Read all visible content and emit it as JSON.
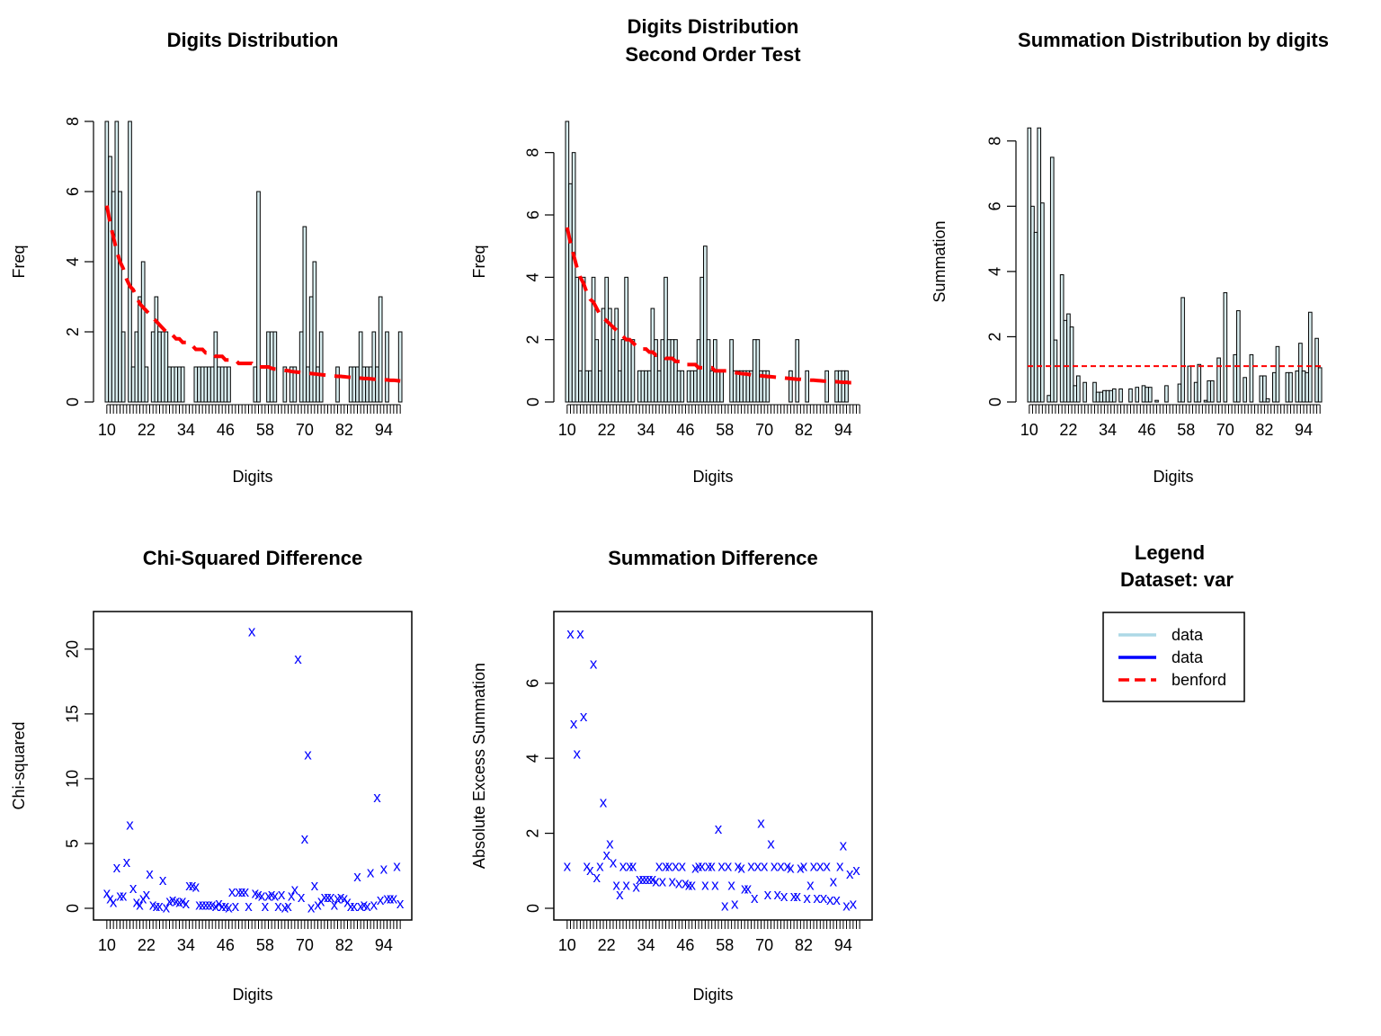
{
  "colors": {
    "bar_fill": "#d9eef0",
    "bar_stroke": "#000000",
    "benford": "#ff0000",
    "points": "#0000ff",
    "data_light": "#add8e6",
    "data_dark": "#0000ff"
  },
  "chart_data": [
    {
      "type": "bar",
      "title": [
        "Digits Distribution"
      ],
      "xlabel": "Digits",
      "ylabel": "Freq",
      "x_range": [
        10,
        99
      ],
      "ylim": [
        0,
        8
      ],
      "yticks": [
        0,
        2,
        4,
        6,
        8
      ],
      "xtick_labels": [
        "10",
        "22",
        "34",
        "46",
        "58",
        "70",
        "82",
        "94"
      ],
      "overlay": {
        "name": "benford",
        "style": "dashed",
        "values": [
          5.6,
          5.1,
          4.7,
          4.3,
          4.0,
          3.8,
          3.5,
          3.3,
          3.2,
          3.0,
          2.8,
          2.7,
          2.6,
          2.5,
          2.4,
          2.3,
          2.2,
          2.1,
          2.0,
          2.0,
          1.9,
          1.8,
          1.8,
          1.7,
          1.7,
          1.6,
          1.6,
          1.5,
          1.5,
          1.5,
          1.4,
          1.4,
          1.4,
          1.3,
          1.3,
          1.3,
          1.2,
          1.2,
          1.2,
          1.2,
          1.1,
          1.1,
          1.1,
          1.1,
          1.1,
          1.0,
          1.0,
          1.0,
          1.0,
          1.0,
          0.96,
          0.94,
          0.93,
          0.91,
          0.9,
          0.89,
          0.87,
          0.86,
          0.85,
          0.84,
          0.83,
          0.82,
          0.81,
          0.8,
          0.79,
          0.78,
          0.77,
          0.76,
          0.75,
          0.74,
          0.73,
          0.73,
          0.72,
          0.71,
          0.7,
          0.7,
          0.69,
          0.68,
          0.67,
          0.67,
          0.66,
          0.65,
          0.65,
          0.64,
          0.63,
          0.63,
          0.62,
          0.62,
          0.61,
          0.6
        ]
      },
      "values": [
        8,
        7,
        6,
        8,
        6,
        2,
        0,
        8,
        1,
        2,
        3,
        4,
        1,
        0,
        2,
        3,
        2,
        2,
        2,
        1,
        1,
        1,
        1,
        1,
        0,
        0,
        0,
        1,
        1,
        1,
        1,
        1,
        1,
        2,
        1,
        1,
        1,
        1,
        0,
        0,
        0,
        0,
        0,
        0,
        0,
        1,
        6,
        0,
        0,
        2,
        2,
        2,
        0,
        0,
        1,
        0,
        1,
        1,
        0,
        2,
        5,
        1,
        3,
        4,
        1,
        2,
        0,
        0,
        0,
        0,
        1,
        0,
        0,
        0,
        1,
        1,
        1,
        2,
        1,
        1,
        1,
        2,
        1,
        3,
        0,
        2,
        0,
        0,
        0,
        2,
        1,
        1
      ]
    },
    {
      "type": "bar",
      "title": [
        "Digits Distribution",
        "Second Order Test"
      ],
      "xlabel": "Digits",
      "ylabel": "Freq",
      "x_range": [
        10,
        99
      ],
      "ylim": [
        0,
        9
      ],
      "yticks": [
        0,
        2,
        4,
        6,
        8
      ],
      "xtick_labels": [
        "10",
        "22",
        "34",
        "46",
        "58",
        "70",
        "82",
        "94"
      ],
      "overlay": {
        "name": "benford",
        "style": "dashed",
        "values": [
          5.6,
          5.1,
          4.7,
          4.3,
          4.0,
          3.8,
          3.5,
          3.3,
          3.2,
          3.0,
          2.8,
          2.7,
          2.6,
          2.5,
          2.4,
          2.3,
          2.2,
          2.1,
          2.0,
          2.0,
          1.9,
          1.8,
          1.8,
          1.7,
          1.7,
          1.6,
          1.6,
          1.5,
          1.5,
          1.5,
          1.4,
          1.4,
          1.4,
          1.3,
          1.3,
          1.3,
          1.2,
          1.2,
          1.2,
          1.2,
          1.1,
          1.1,
          1.1,
          1.1,
          1.1,
          1.0,
          1.0,
          1.0,
          1.0,
          1.0,
          0.96,
          0.94,
          0.93,
          0.91,
          0.9,
          0.89,
          0.87,
          0.86,
          0.85,
          0.84,
          0.83,
          0.82,
          0.81,
          0.8,
          0.79,
          0.78,
          0.77,
          0.76,
          0.75,
          0.74,
          0.73,
          0.73,
          0.72,
          0.71,
          0.7,
          0.7,
          0.69,
          0.68,
          0.67,
          0.67,
          0.66,
          0.65,
          0.65,
          0.64,
          0.63,
          0.63,
          0.62,
          0.62,
          0.61,
          0.6
        ]
      },
      "values": [
        9,
        7,
        8,
        4,
        1,
        4,
        1,
        1,
        4,
        2,
        1,
        3,
        4,
        3,
        2,
        3,
        1,
        2,
        4,
        2,
        2,
        0,
        1,
        1,
        1,
        1,
        3,
        2,
        1,
        2,
        4,
        2,
        2,
        2,
        1,
        1,
        0,
        1,
        1,
        1,
        2,
        4,
        5,
        2,
        1,
        2,
        1,
        1,
        0,
        0,
        2,
        1,
        1,
        1,
        1,
        1,
        1,
        2,
        2,
        1,
        1,
        1,
        0,
        0,
        0,
        0,
        0,
        0,
        1,
        0,
        2,
        0,
        0,
        1,
        0,
        0,
        0,
        0,
        0,
        1,
        0,
        0,
        1,
        1,
        1,
        1,
        0,
        0,
        0,
        0
      ]
    },
    {
      "type": "bar",
      "title": [
        "Summation Distribution by digits"
      ],
      "xlabel": "Digits",
      "ylabel": "Summation",
      "x_range": [
        10,
        99
      ],
      "ylim": [
        0,
        8.6
      ],
      "yticks": [
        0,
        2,
        4,
        6,
        8
      ],
      "xtick_labels": [
        "10",
        "22",
        "34",
        "46",
        "58",
        "70",
        "82",
        "94"
      ],
      "overlay": {
        "name": "benford",
        "style": "dashed",
        "values": [
          1.1,
          1.1
        ]
      },
      "values": [
        8.4,
        6.0,
        5.2,
        8.4,
        6.1,
        0.0,
        0.2,
        7.5,
        1.9,
        0.0,
        3.9,
        2.5,
        2.7,
        2.3,
        0.5,
        0.8,
        0.0,
        0.6,
        0.0,
        0.0,
        0.6,
        0.3,
        0.3,
        0.35,
        0.35,
        0.35,
        0.4,
        0.0,
        0.4,
        0.0,
        0.0,
        0.4,
        0.0,
        0.45,
        0.0,
        0.5,
        0.45,
        0.45,
        0.0,
        0.05,
        0.0,
        0.0,
        0.5,
        0.0,
        0.0,
        0.0,
        0.55,
        3.2,
        0.0,
        1.1,
        0.0,
        0.6,
        1.15,
        0.0,
        0.05,
        0.65,
        0.65,
        0.0,
        1.35,
        0.0,
        3.35,
        0.0,
        0.0,
        1.45,
        2.8,
        0.0,
        0.75,
        0.0,
        1.45,
        0.0,
        0.0,
        0.8,
        0.8,
        0.1,
        0.0,
        0.9,
        1.7,
        0.0,
        0.0,
        0.9,
        0.9,
        0.0,
        0.95,
        1.8,
        0.95,
        0.9,
        2.75,
        0.0,
        1.95,
        1.05,
        0.1
      ]
    },
    {
      "type": "scatter",
      "title": [
        "Chi-Squared Difference"
      ],
      "xlabel": "Digits",
      "ylabel": "Chi-squared",
      "x_range": [
        10,
        99
      ],
      "ylim": [
        0,
        22
      ],
      "yticks": [
        0,
        5,
        10,
        15,
        20
      ],
      "xtick_labels": [
        "10",
        "22",
        "34",
        "46",
        "58",
        "70",
        "82",
        "94"
      ],
      "values": [
        1.1,
        0.7,
        0.4,
        3.1,
        0.9,
        0.9,
        3.5,
        6.4,
        1.5,
        0.4,
        0.2,
        0.7,
        1.0,
        2.6,
        0.2,
        0.1,
        0.1,
        2.1,
        0.0,
        0.5,
        0.6,
        0.5,
        0.4,
        0.5,
        0.3,
        1.7,
        1.7,
        1.6,
        0.2,
        0.2,
        0.2,
        0.2,
        0.2,
        0.1,
        0.3,
        0.1,
        0.1,
        0.0,
        1.2,
        0.1,
        1.2,
        1.2,
        1.2,
        0.1,
        21.3,
        1.1,
        1.0,
        0.9,
        0.1,
        0.9,
        1.0,
        0.9,
        0.1,
        1.0,
        0.0,
        0.1,
        0.9,
        1.4,
        19.2,
        0.8,
        5.3,
        11.8,
        0.0,
        1.7,
        0.2,
        0.5,
        0.8,
        0.8,
        0.8,
        0.2,
        0.7,
        0.8,
        0.7,
        0.4,
        0.1,
        0.1,
        2.4,
        0.1,
        0.2,
        0.1,
        2.7,
        0.2,
        8.5,
        0.6,
        3.0,
        0.7,
        0.7,
        0.7,
        3.2,
        0.3,
        0.6,
        0.3
      ]
    },
    {
      "type": "scatter",
      "title": [
        "Summation Difference"
      ],
      "xlabel": "Digits",
      "ylabel": "Absolute Excess Summation",
      "x_range": [
        10,
        99
      ],
      "ylim": [
        0,
        7.6
      ],
      "yticks": [
        0,
        2,
        4,
        6
      ],
      "xtick_labels": [
        "10",
        "22",
        "34",
        "46",
        "58",
        "70",
        "82",
        "94"
      ],
      "values": [
        1.1,
        7.3,
        4.9,
        4.1,
        7.3,
        5.1,
        1.1,
        1.0,
        6.5,
        0.8,
        1.1,
        2.8,
        1.4,
        1.7,
        1.2,
        0.6,
        0.35,
        1.1,
        0.6,
        1.1,
        1.1,
        0.55,
        0.75,
        0.75,
        0.75,
        0.75,
        0.75,
        0.7,
        1.1,
        0.7,
        1.1,
        1.1,
        0.7,
        1.1,
        0.65,
        1.1,
        0.65,
        0.6,
        0.6,
        1.05,
        1.1,
        1.1,
        0.6,
        1.1,
        1.1,
        0.6,
        2.1,
        1.1,
        0.05,
        1.1,
        0.6,
        0.1,
        1.1,
        1.05,
        0.5,
        0.5,
        1.1,
        0.25,
        1.1,
        2.25,
        1.1,
        0.35,
        1.7,
        1.1,
        0.35,
        1.1,
        0.3,
        1.1,
        1.05,
        0.3,
        0.3,
        1.05,
        1.1,
        0.25,
        0.6,
        1.1,
        0.25,
        1.1,
        0.25,
        1.1,
        0.2,
        0.7,
        0.2,
        1.1,
        1.65,
        0.05,
        0.9,
        0.1,
        1.0
      ]
    }
  ],
  "legend": {
    "title": [
      "Legend",
      "Dataset: var"
    ],
    "entries": [
      {
        "label": "data",
        "color": "#add8e6",
        "style": "solid"
      },
      {
        "label": "data",
        "color": "#0000ff",
        "style": "solid"
      },
      {
        "label": "benford",
        "color": "#ff0000",
        "style": "dashed"
      }
    ]
  }
}
